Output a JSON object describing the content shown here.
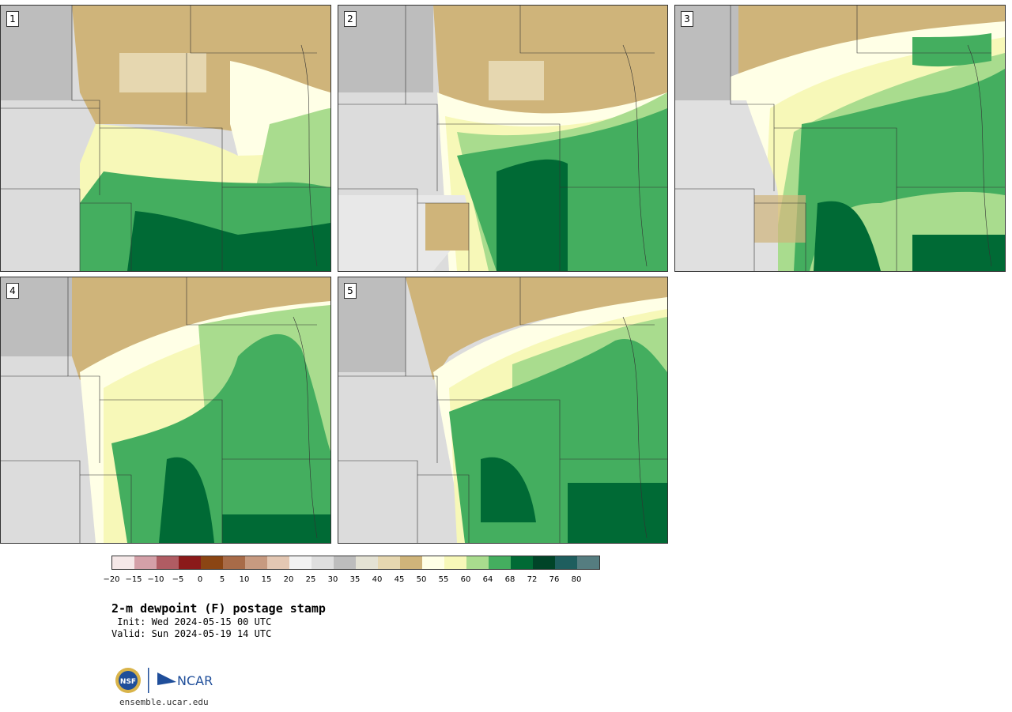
{
  "panels": [
    {
      "label": "1"
    },
    {
      "label": "2"
    },
    {
      "label": "3"
    },
    {
      "label": "4"
    },
    {
      "label": "5"
    }
  ],
  "colorbar": {
    "colors": [
      "#f5e8e8",
      "#d4a0a8",
      "#b05c63",
      "#8b1a1a",
      "#8b4513",
      "#a86b48",
      "#c79a80",
      "#e3c7b3",
      "#f2f2f2",
      "#dedede",
      "#bdbdbd",
      "#e4e2d4",
      "#e6d7b0",
      "#cfb47a",
      "#ffffe6",
      "#f7f8b8",
      "#a9dc8e",
      "#44ae5f",
      "#006a35",
      "#004428",
      "#1e5e5e",
      "#557d80"
    ],
    "tick_labels": [
      "−20",
      "−15",
      "−10",
      "−5",
      "0",
      "5",
      "10",
      "15",
      "20",
      "25",
      "30",
      "35",
      "40",
      "45",
      "50",
      "55",
      "60",
      "64",
      "68",
      "72",
      "76",
      "80"
    ]
  },
  "title": "2-m dewpoint (F) postage stamp",
  "init": " Init: Wed 2024-05-15 00 UTC",
  "valid": "Valid: Sun 2024-05-19 14 UTC",
  "logo": {
    "org1": "NSF",
    "org2": "NCAR"
  },
  "url": "ensemble.ucar.edu"
}
